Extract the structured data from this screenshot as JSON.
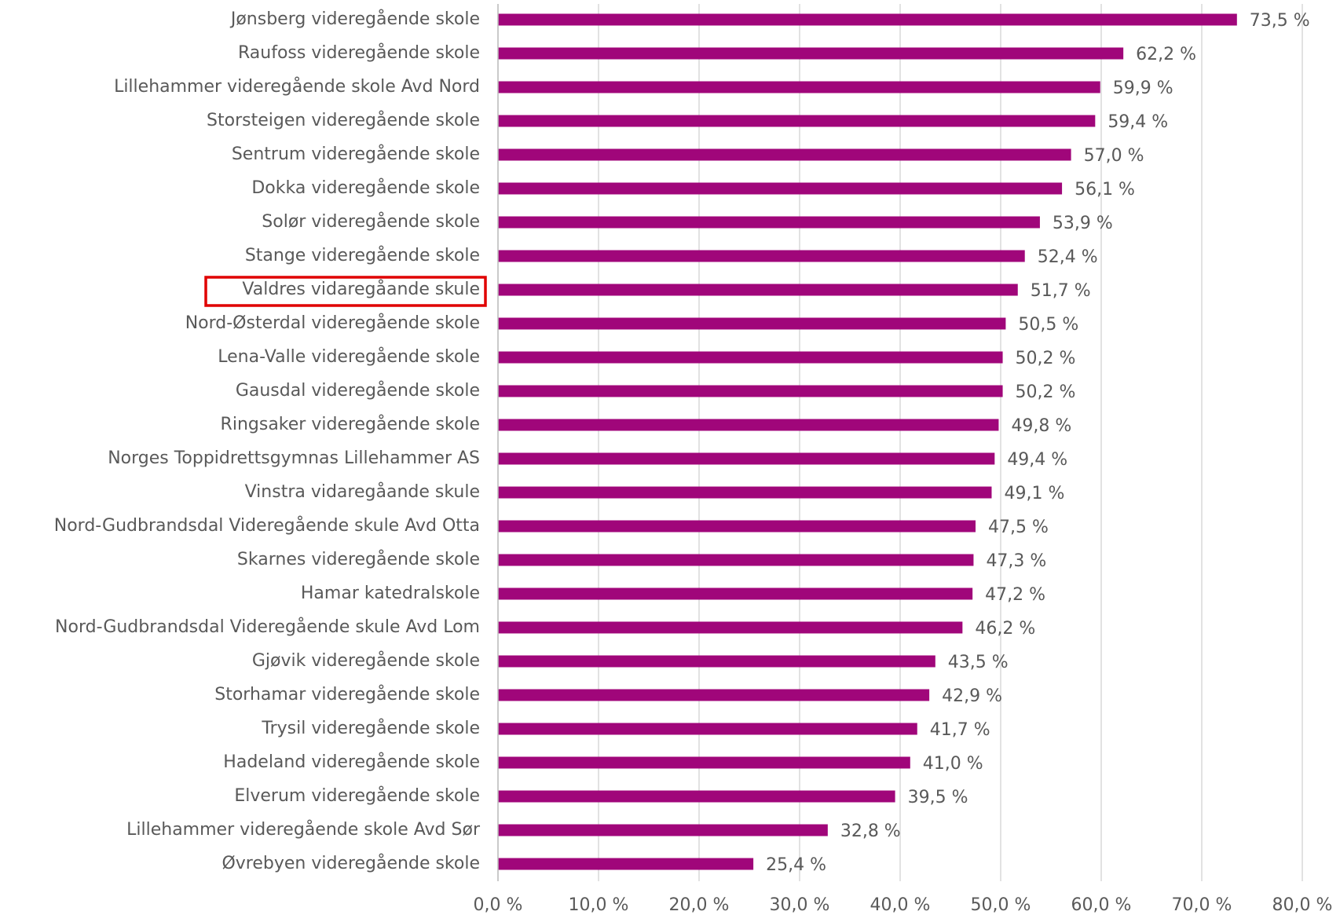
{
  "chart_data": {
    "type": "hbar",
    "categories": [
      "Jønsberg videregående skole",
      "Raufoss videregående skole",
      "Lillehammer videregående skole Avd Nord",
      "Storsteigen videregående skole",
      "Sentrum videregående skole",
      "Dokka videregående skole",
      "Solør videregående skole",
      "Stange videregående skole",
      "Valdres vidaregåande skule",
      "Nord-Østerdal videregående skole",
      "Lena-Valle videregående skole",
      "Gausdal videregående skole",
      "Ringsaker videregående skole",
      "Norges Toppidrettsgymnas Lillehammer AS",
      "Vinstra vidaregåande skule",
      "Nord-Gudbrandsdal Videregående skule Avd Otta",
      "Skarnes videregående skole",
      "Hamar katedralskole",
      "Nord-Gudbrandsdal Videregående skule Avd Lom",
      "Gjøvik videregående skole",
      "Storhamar videregående skole",
      "Trysil videregående skole",
      "Hadeland videregående skole",
      "Elverum videregående skole",
      "Lillehammer videregående skole Avd Sør",
      "Øvrebyen videregående skole"
    ],
    "values": [
      73.5,
      62.2,
      59.9,
      59.4,
      57.0,
      56.1,
      53.9,
      52.4,
      51.7,
      50.5,
      50.2,
      50.2,
      49.8,
      49.4,
      49.1,
      47.5,
      47.3,
      47.2,
      46.2,
      43.5,
      42.9,
      41.7,
      41.0,
      39.5,
      32.8,
      25.4
    ],
    "value_labels": [
      "73,5 %",
      "62,2 %",
      "59,9 %",
      "59,4 %",
      "57,0 %",
      "56,1 %",
      "53,9 %",
      "52,4 %",
      "51,7 %",
      "50,5 %",
      "50,2 %",
      "50,2 %",
      "49,8 %",
      "49,4 %",
      "49,1 %",
      "47,5 %",
      "47,3 %",
      "47,2 %",
      "46,2 %",
      "43,5 %",
      "42,9 %",
      "41,7 %",
      "41,0 %",
      "39,5 %",
      "32,8 %",
      "25,4 %"
    ],
    "color": "#a0067a",
    "xlim": [
      0,
      80
    ],
    "xticks": [
      {
        "value": 0,
        "label": "0,0 %"
      },
      {
        "value": 10,
        "label": "10,0 %"
      },
      {
        "value": 20,
        "label": "20,0 %"
      },
      {
        "value": 30,
        "label": "30,0 %"
      },
      {
        "value": 40,
        "label": "40,0 %"
      },
      {
        "value": 50,
        "label": "50,0 %"
      },
      {
        "value": 60,
        "label": "60,0 %"
      },
      {
        "value": 70,
        "label": "70,0 %"
      },
      {
        "value": 80,
        "label": "80,0 %"
      }
    ],
    "grid": true
  }
}
